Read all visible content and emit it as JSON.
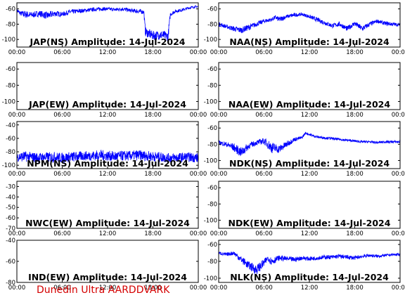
{
  "footer": {
    "credit": "Dunedin Ultra AARDDVARK"
  },
  "colors": {
    "trace": "#0000ff",
    "credit": "#d40000",
    "axis": "#000000",
    "background": "#ffffff"
  },
  "chart_data": [
    {
      "type": "line",
      "title": "JAP(NS) Amplitude: 14-Jul-2024",
      "xlabel": "",
      "ylabel": "",
      "x_ticks": [
        "00:00",
        "06:00",
        "12:00",
        "18:00",
        "00:00"
      ],
      "y_ticks": [
        -100,
        -80,
        -60
      ],
      "xlim": [
        0,
        24
      ],
      "ylim": [
        -110,
        -52
      ],
      "series": [
        {
          "x": [
            0,
            0.5,
            1,
            2,
            3,
            4,
            5,
            6,
            7,
            8,
            9,
            10,
            11,
            12,
            13,
            14,
            15,
            16,
            16.8,
            17.0,
            18,
            19,
            20,
            20.3,
            21,
            22,
            23,
            24
          ],
          "y": [
            -62,
            -66,
            -67,
            -68,
            -66,
            -69,
            -66,
            -67,
            -64,
            -63,
            -62,
            -61,
            -60,
            -60,
            -61,
            -60,
            -62,
            -63,
            -64,
            -90,
            -95,
            -94,
            -96,
            -67,
            -63,
            -61,
            -58,
            -57
          ],
          "band": [
            6,
            6,
            10,
            8,
            8,
            10,
            8,
            6,
            6,
            6,
            5,
            5,
            5,
            4,
            5,
            5,
            5,
            6,
            6,
            12,
            12,
            12,
            12,
            6,
            4,
            4,
            3,
            3
          ]
        }
      ]
    },
    {
      "type": "line",
      "title": "NAA(NS) Amplitude: 14-Jul-2024",
      "xlabel": "",
      "ylabel": "",
      "x_ticks": [
        "00:00",
        "06:00",
        "12:00",
        "18:00",
        "00:00"
      ],
      "y_ticks": [
        -100,
        -80,
        -60
      ],
      "xlim": [
        0,
        24
      ],
      "ylim": [
        -110,
        -52
      ],
      "series": [
        {
          "x": [
            0,
            1,
            2,
            3,
            4,
            5,
            6,
            7,
            7.5,
            8,
            9,
            10,
            11,
            12,
            13,
            14,
            15,
            16,
            17,
            18,
            19,
            20,
            21,
            22,
            23,
            24
          ],
          "y": [
            -80,
            -83,
            -86,
            -88,
            -84,
            -80,
            -76,
            -74,
            -71,
            -74,
            -70,
            -68,
            -67,
            -70,
            -74,
            -78,
            -82,
            -80,
            -86,
            -79,
            -86,
            -80,
            -76,
            -79,
            -80,
            -81
          ],
          "band": [
            6,
            5,
            7,
            8,
            8,
            6,
            6,
            5,
            5,
            8,
            5,
            5,
            4,
            5,
            6,
            6,
            6,
            6,
            7,
            6,
            8,
            6,
            5,
            5,
            5,
            4
          ]
        }
      ]
    },
    {
      "type": "line",
      "title": "JAP(EW) Amplitude: 14-Jul-2024",
      "xlabel": "",
      "ylabel": "",
      "x_ticks": [
        "00:00",
        "06:00",
        "12:00",
        "18:00",
        "00:00"
      ],
      "y_ticks": [
        -100,
        -80,
        -60
      ],
      "xlim": [
        0,
        24
      ],
      "ylim": [
        -110,
        -52
      ],
      "series": []
    },
    {
      "type": "line",
      "title": "NAA(EW) Amplitude: 14-Jul-2024",
      "xlabel": "",
      "ylabel": "",
      "x_ticks": [
        "00:00",
        "06:00",
        "12:00",
        "18:00",
        "00:00"
      ],
      "y_ticks": [
        -100,
        -80,
        -60
      ],
      "xlim": [
        0,
        24
      ],
      "ylim": [
        -110,
        -52
      ],
      "series": []
    },
    {
      "type": "line",
      "title": "NPM(NS) Amplitude: 14-Jul-2024",
      "xlabel": "",
      "ylabel": "",
      "x_ticks": [
        "00:00",
        "06:00",
        "12:00",
        "18:00",
        "00:00"
      ],
      "y_ticks": [
        -100,
        -80,
        -60,
        -40
      ],
      "xlim": [
        0,
        24
      ],
      "ylim": [
        -105,
        -35
      ],
      "series": [
        {
          "x": [
            0,
            1,
            2,
            3,
            4,
            5,
            6,
            7,
            8,
            9,
            10,
            11,
            12,
            13,
            14,
            15,
            16,
            17,
            18,
            19,
            20,
            21,
            22,
            23,
            24
          ],
          "y": [
            -88,
            -87,
            -88,
            -89,
            -88,
            -88,
            -89,
            -88,
            -87,
            -86,
            -86,
            -85,
            -86,
            -87,
            -86,
            -86,
            -85,
            -86,
            -87,
            -88,
            -89,
            -89,
            -88,
            -88,
            -89
          ],
          "band": [
            14,
            16,
            15,
            16,
            15,
            16,
            15,
            16,
            15,
            14,
            15,
            16,
            15,
            16,
            15,
            15,
            16,
            15,
            15,
            15,
            14,
            15,
            14,
            14,
            15
          ]
        }
      ]
    },
    {
      "type": "line",
      "title": "NDK(NS) Amplitude: 14-Jul-2024",
      "xlabel": "",
      "ylabel": "",
      "x_ticks": [
        "00:00",
        "06:00",
        "12:00",
        "18:00",
        "00:00"
      ],
      "y_ticks": [
        -100,
        -80,
        -60
      ],
      "xlim": [
        0,
        24
      ],
      "ylim": [
        -110,
        -52
      ],
      "series": [
        {
          "x": [
            0,
            1,
            2,
            3,
            4,
            5,
            6,
            7,
            8,
            9,
            10,
            11,
            11.5,
            12,
            13,
            14,
            15,
            16,
            17,
            18,
            19,
            20,
            21,
            22,
            23,
            24
          ],
          "y": [
            -78,
            -80,
            -84,
            -90,
            -82,
            -78,
            -76,
            -84,
            -86,
            -80,
            -74,
            -72,
            -66,
            -68,
            -71,
            -72,
            -73,
            -74,
            -75,
            -76,
            -77,
            -77,
            -78,
            -77,
            -77,
            -77
          ],
          "band": [
            5,
            6,
            10,
            12,
            8,
            6,
            8,
            14,
            10,
            8,
            5,
            4,
            3,
            3,
            3,
            3,
            3,
            3,
            3,
            3,
            3,
            3,
            3,
            3,
            3,
            3
          ]
        }
      ]
    },
    {
      "type": "line",
      "title": "NWC(EW) Amplitude: 14-Jul-2024",
      "xlabel": "",
      "ylabel": "",
      "x_ticks": [
        "00:00",
        "06:00",
        "12:00",
        "18:00",
        "00:00"
      ],
      "y_ticks": [
        -70,
        -60,
        -50,
        -40,
        -30
      ],
      "xlim": [
        0,
        24
      ],
      "ylim": [
        -70,
        -25
      ],
      "series": []
    },
    {
      "type": "line",
      "title": "NDK(EW) Amplitude: 14-Jul-2024",
      "xlabel": "",
      "ylabel": "",
      "x_ticks": [
        "00:00",
        "06:00",
        "12:00",
        "18:00",
        "00:00"
      ],
      "y_ticks": [
        -100,
        -80,
        -60
      ],
      "xlim": [
        0,
        24
      ],
      "ylim": [
        -110,
        -52
      ],
      "series": []
    },
    {
      "type": "line",
      "title": "IND(EW) Amplitude: 14-Jul-2024",
      "xlabel": "",
      "ylabel": "",
      "x_ticks": [
        "00:00",
        "06:00",
        "12:00",
        "18:00",
        "00:00"
      ],
      "y_ticks": [
        -80,
        -60,
        -40
      ],
      "xlim": [
        0,
        24
      ],
      "ylim": [
        -80,
        -40
      ],
      "series": []
    },
    {
      "type": "line",
      "title": "NLK(NS) Amplitude: 14-Jul-2024",
      "xlabel": "",
      "ylabel": "",
      "x_ticks": [
        "00:00",
        "06:00",
        "12:00",
        "18:00",
        "00:00"
      ],
      "y_ticks": [
        -100,
        -80,
        -60
      ],
      "xlim": [
        0,
        24
      ],
      "ylim": [
        -105,
        -55
      ],
      "series": [
        {
          "x": [
            0,
            1,
            2,
            3,
            4,
            5,
            6,
            6.5,
            7,
            8,
            9,
            10,
            11,
            12,
            13,
            14,
            15,
            16,
            17,
            18,
            19,
            20,
            21,
            22,
            23,
            24
          ],
          "y": [
            -70,
            -72,
            -70,
            -78,
            -85,
            -90,
            -82,
            -76,
            -80,
            -76,
            -77,
            -78,
            -76,
            -77,
            -76,
            -75,
            -75,
            -74,
            -75,
            -76,
            -74,
            -73,
            -74,
            -73,
            -72,
            -72
          ],
          "band": [
            4,
            4,
            5,
            8,
            10,
            12,
            10,
            6,
            10,
            6,
            6,
            6,
            5,
            5,
            5,
            5,
            5,
            5,
            5,
            5,
            4,
            4,
            4,
            3,
            3,
            3
          ]
        }
      ]
    }
  ]
}
